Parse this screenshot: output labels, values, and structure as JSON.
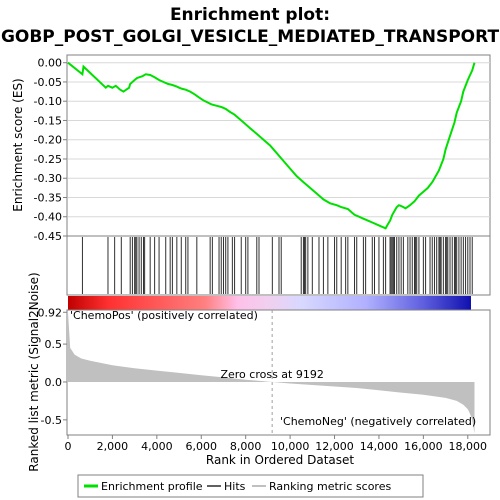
{
  "chart_data": {
    "type": "line",
    "title_line1": "Enrichment plot:",
    "title_line2": "GOBP_POST_GOLGI_VESICLE_MEDIATED_TRANSPORT",
    "es_panel": {
      "ylabel": "Enrichment score (ES)",
      "ylim": [
        -0.45,
        0.02
      ],
      "yticks": [
        "0.00",
        "-0.05",
        "-0.10",
        "-0.15",
        "-0.20",
        "-0.25",
        "-0.30",
        "-0.35",
        "-0.40",
        "-0.45"
      ],
      "series": [
        {
          "name": "Enrichment profile",
          "color": "#00e000",
          "x": [
            0,
            650,
            700,
            1700,
            1800,
            2000,
            2150,
            2350,
            2500,
            2750,
            2800,
            2900,
            3000,
            3100,
            3200,
            3350,
            3500,
            3700,
            3900,
            4100,
            4300,
            4500,
            4700,
            4900,
            5000,
            5150,
            5300,
            5500,
            5700,
            5900,
            6100,
            6350,
            6450,
            6700,
            6900,
            7100,
            7300,
            7500,
            7700,
            7900,
            8200,
            8500,
            8800,
            9100,
            9400,
            9700,
            10000,
            10300,
            10600,
            10900,
            11200,
            11500,
            11800,
            12100,
            12300,
            12600,
            12800,
            12900,
            13100,
            13300,
            13500,
            13700,
            13900,
            14100,
            14300,
            14400,
            14500,
            14600,
            14700,
            14800,
            14900,
            15000,
            15200,
            15400,
            15600,
            15800,
            16000,
            16200,
            16400,
            16500,
            16700,
            16900,
            17000,
            17200,
            17400,
            17500,
            17700,
            17800,
            18000,
            18200,
            18300
          ],
          "y": [
            0.0,
            -0.03,
            -0.01,
            -0.065,
            -0.06,
            -0.065,
            -0.06,
            -0.07,
            -0.075,
            -0.065,
            -0.055,
            -0.05,
            -0.045,
            -0.04,
            -0.038,
            -0.035,
            -0.03,
            -0.032,
            -0.038,
            -0.045,
            -0.05,
            -0.055,
            -0.058,
            -0.062,
            -0.065,
            -0.068,
            -0.07,
            -0.075,
            -0.082,
            -0.09,
            -0.098,
            -0.105,
            -0.108,
            -0.112,
            -0.115,
            -0.12,
            -0.128,
            -0.135,
            -0.145,
            -0.155,
            -0.17,
            -0.185,
            -0.2,
            -0.215,
            -0.235,
            -0.255,
            -0.275,
            -0.295,
            -0.31,
            -0.325,
            -0.34,
            -0.355,
            -0.365,
            -0.37,
            -0.375,
            -0.38,
            -0.39,
            -0.395,
            -0.4,
            -0.405,
            -0.41,
            -0.415,
            -0.42,
            -0.425,
            -0.43,
            -0.42,
            -0.41,
            -0.395,
            -0.385,
            -0.375,
            -0.37,
            -0.372,
            -0.378,
            -0.37,
            -0.36,
            -0.345,
            -0.335,
            -0.325,
            -0.31,
            -0.3,
            -0.28,
            -0.25,
            -0.225,
            -0.19,
            -0.155,
            -0.13,
            -0.1,
            -0.075,
            -0.045,
            -0.02,
            0.0
          ]
        }
      ]
    },
    "hits_panel": {
      "hit_positions": [
        650,
        1800,
        2100,
        2400,
        2800,
        2900,
        3000,
        3050,
        3100,
        3200,
        3300,
        3400,
        3450,
        3700,
        3900,
        4100,
        4400,
        4600,
        4700,
        4900,
        5100,
        5300,
        5400,
        5800,
        6400,
        6500,
        6800,
        6900,
        7000,
        7100,
        7200,
        7400,
        7500,
        7800,
        8000,
        8100,
        8500,
        8600,
        9200,
        9500,
        9600,
        10500,
        10600,
        10650,
        10700,
        10800,
        11000,
        11300,
        11500,
        11700,
        12000,
        12100,
        12300,
        12500,
        12600,
        12900,
        13000,
        13300,
        13400,
        13700,
        13800,
        14000,
        14200,
        14300,
        14500,
        14550,
        14600,
        14650,
        14700,
        14800,
        14900,
        15000,
        15100,
        15300,
        15400,
        15500,
        15600,
        15650,
        15700,
        15800,
        16000,
        16100,
        16300,
        16400,
        16500,
        16600,
        16700,
        16750,
        16800,
        16900,
        17000,
        17050,
        17100,
        17200,
        17300,
        17400,
        17450,
        17500,
        17600,
        17700,
        17800,
        17900,
        18000,
        18100,
        18200
      ]
    },
    "metric_panel": {
      "ylabel": "Ranked list metric (Signal2Noise)",
      "ylim": [
        -0.7,
        0.95
      ],
      "yticks": [
        "0.92",
        "0.5",
        "0.0",
        "-0.5"
      ],
      "ytick_values": [
        0.92,
        0.5,
        0.0,
        -0.5
      ],
      "x": [
        0,
        100,
        300,
        600,
        1000,
        2000,
        3000,
        4000,
        5000,
        6000,
        7000,
        8000,
        9192,
        10000,
        11000,
        12000,
        13000,
        14000,
        15000,
        16000,
        17000,
        17500,
        17800,
        18000,
        18100,
        18200,
        18300
      ],
      "y": [
        0.92,
        0.45,
        0.36,
        0.31,
        0.28,
        0.22,
        0.18,
        0.15,
        0.12,
        0.09,
        0.06,
        0.03,
        0.0,
        -0.02,
        -0.04,
        -0.06,
        -0.08,
        -0.11,
        -0.14,
        -0.17,
        -0.21,
        -0.25,
        -0.3,
        -0.36,
        -0.42,
        -0.5,
        -0.68
      ],
      "zero_cross_label": "Zero cross at 9192",
      "zero_cross": 9192,
      "pos_label": "'ChemoPos' (positively correlated)",
      "neg_label": "'ChemoNeg' (negatively correlated)",
      "pos_color": "#c00000",
      "neg_color": "#2020c0"
    },
    "x_axis": {
      "xlabel": "Rank in Ordered Dataset",
      "xlim": [
        0,
        19000
      ],
      "ticks": [
        0,
        2000,
        4000,
        6000,
        8000,
        10000,
        12000,
        14000,
        16000,
        18000
      ],
      "tick_labels": [
        "0",
        "2,000",
        "4,000",
        "6,000",
        "8,000",
        "10,000",
        "12,000",
        "14,000",
        "16,000",
        "18,000"
      ]
    },
    "legend": {
      "placement": "bottom",
      "items": [
        "Enrichment profile",
        "Hits",
        "Ranking metric scores"
      ],
      "colors": [
        "#00e000",
        "#606060",
        "#c0c0c0"
      ]
    }
  }
}
